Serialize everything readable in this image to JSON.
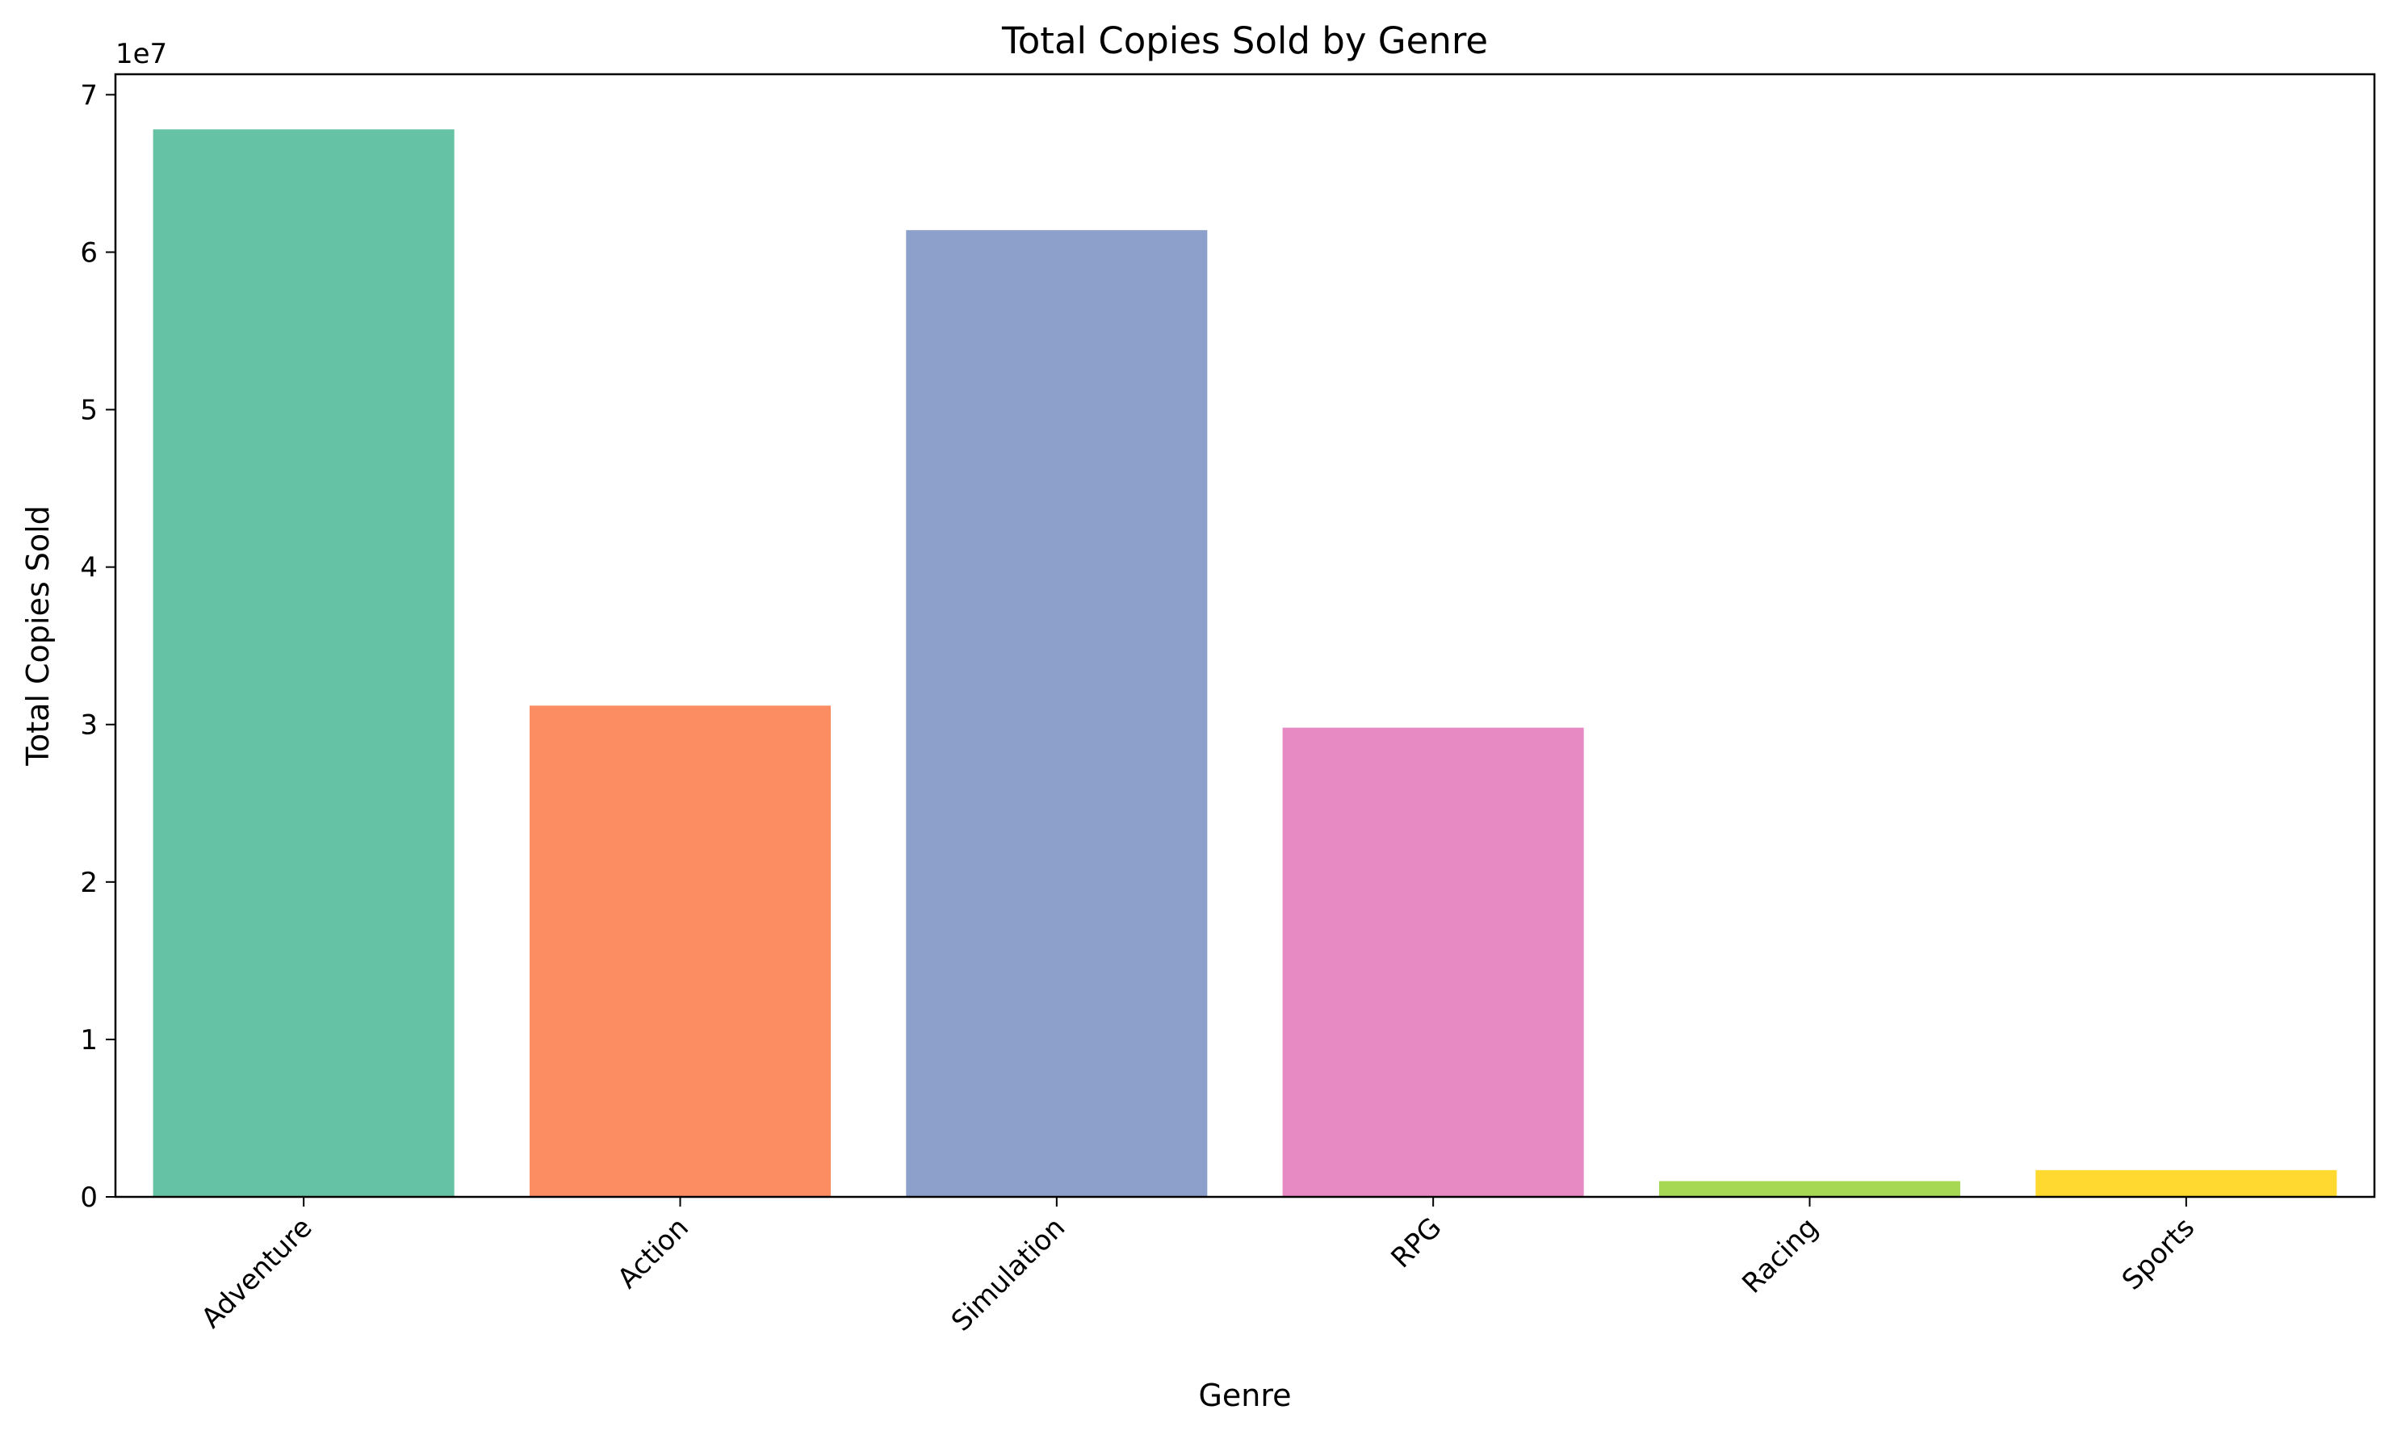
{
  "chart_data": {
    "type": "bar",
    "title": "Total Copies Sold by Genre",
    "xlabel": "Genre",
    "ylabel": "Total Copies Sold",
    "offset_label": "1e7",
    "categories": [
      "Adventure",
      "Action",
      "Simulation",
      "RPG",
      "Racing",
      "Sports"
    ],
    "values": [
      67800000,
      31200000,
      61400000,
      29800000,
      1000000,
      1700000
    ],
    "colors": [
      "#66c2a5",
      "#fc8d62",
      "#8da0cb",
      "#e78ac3",
      "#a6d854",
      "#ffd92f"
    ],
    "ylim": [
      0,
      71300000
    ],
    "yticks": [
      0,
      10000000,
      20000000,
      30000000,
      40000000,
      50000000,
      60000000,
      70000000
    ],
    "ytick_labels": [
      "0",
      "1",
      "2",
      "3",
      "4",
      "5",
      "6",
      "7"
    ],
    "grid": false,
    "legend": "none"
  }
}
